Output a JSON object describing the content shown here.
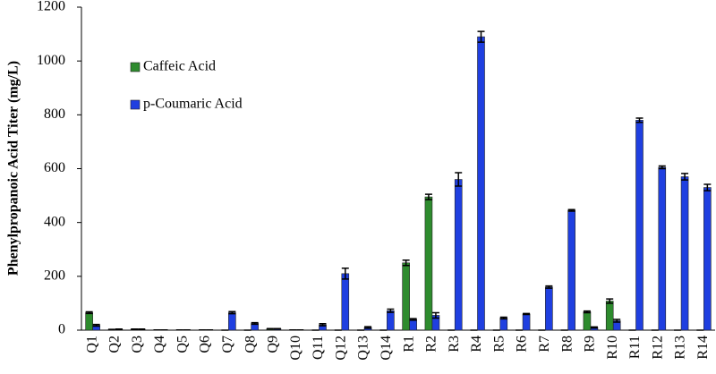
{
  "chart_data": {
    "type": "bar",
    "y_label": "Phenylpropanoic Acid Titer (mg/L)",
    "categories": [
      "Q1",
      "Q2",
      "Q3",
      "Q4",
      "Q5",
      "Q6",
      "Q7",
      "Q8",
      "Q9",
      "Q10",
      "Q11",
      "Q12",
      "Q13",
      "Q14",
      "R1",
      "R2",
      "R3",
      "R4",
      "R5",
      "R6",
      "R7",
      "R8",
      "R9",
      "R10",
      "R11",
      "R12",
      "R13",
      "R14"
    ],
    "series": [
      {
        "name": "Caffeic Acid",
        "color": "#2e8b2e",
        "values": [
          65,
          2,
          3,
          1,
          1,
          1,
          0,
          0,
          5,
          1,
          0,
          0,
          0,
          0,
          250,
          495,
          0,
          0,
          0,
          0,
          0,
          0,
          68,
          108,
          0,
          0,
          0,
          0
        ],
        "errors": [
          3,
          1,
          1,
          0,
          0,
          0,
          0,
          0,
          1,
          0,
          0,
          0,
          0,
          0,
          10,
          10,
          0,
          0,
          0,
          0,
          0,
          0,
          3,
          8,
          0,
          0,
          0,
          0
        ]
      },
      {
        "name": "p-Coumaric Acid",
        "color": "#1f3fe0",
        "values": [
          18,
          3,
          3,
          1,
          1,
          1,
          65,
          25,
          5,
          1,
          20,
          210,
          10,
          72,
          40,
          55,
          560,
          1090,
          45,
          60,
          160,
          445,
          10,
          35,
          780,
          605,
          570,
          530
        ],
        "errors": [
          3,
          1,
          1,
          0,
          0,
          0,
          4,
          3,
          1,
          0,
          4,
          20,
          3,
          6,
          3,
          10,
          25,
          20,
          3,
          2,
          4,
          3,
          2,
          5,
          8,
          5,
          12,
          12
        ]
      }
    ],
    "ylim": [
      0,
      1200
    ],
    "yticks": [
      0,
      200,
      400,
      600,
      800,
      1000,
      1200
    ],
    "legend": "upper left",
    "grid": false
  }
}
